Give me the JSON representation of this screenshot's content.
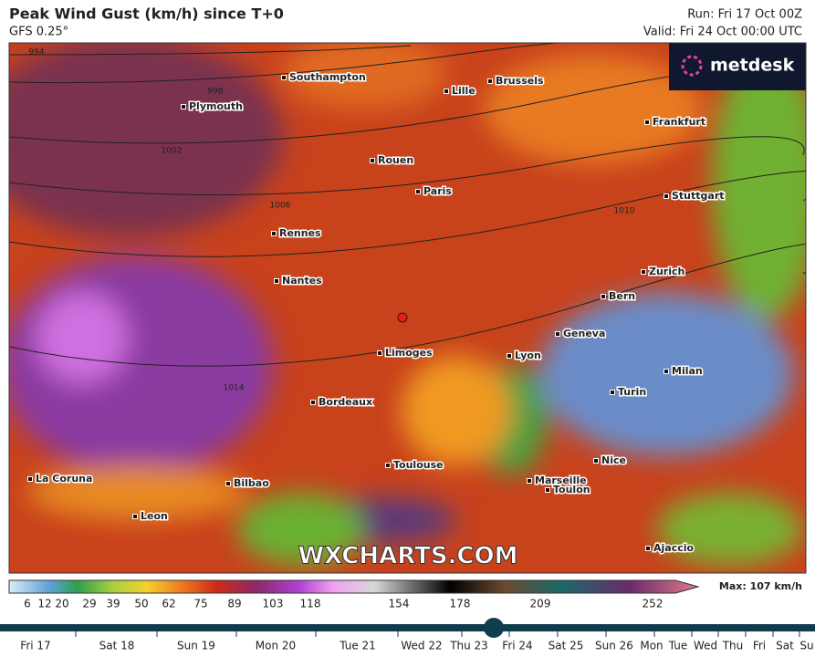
{
  "header": {
    "title": "Peak Wind Gust (km/h) since T+0",
    "model": "GFS 0.25°",
    "run": "Run: Fri 17 Oct 00Z",
    "valid": "Valid: Fri 24 Oct 00:00 UTC"
  },
  "logo": "metdesk",
  "watermark": "WXCHARTS.COM",
  "cities": [
    "Southampton",
    "Plymouth",
    "Lille",
    "Brussels",
    "Frankfurt",
    "Rouen",
    "Paris",
    "Stuttgart",
    "Rennes",
    "Nantes",
    "Zurich",
    "Bern",
    "Geneva",
    "Limoges",
    "Lyon",
    "Milan",
    "Turin",
    "Bordeaux",
    "Nice",
    "Toulouse",
    "Marseille",
    "Toulon",
    "La Coruna",
    "Bilbao",
    "Leon",
    "Ajaccio"
  ],
  "isobars": [
    "994",
    "998",
    "1002",
    "1006",
    "1010",
    "1014"
  ],
  "colorbar": {
    "ticks": [
      6,
      12,
      20,
      29,
      39,
      50,
      62,
      75,
      89,
      103,
      118,
      154,
      178,
      209,
      252
    ],
    "max": "Max: 107 km/h"
  },
  "timeline": [
    "Fri 17",
    "Sat 18",
    "Sun 19",
    "Mon 20",
    "Tue 21",
    "Wed 22",
    "Thu 23",
    "Fri 24",
    "Sat 25",
    "Sun 26",
    "Mon",
    "Tue",
    "Wed",
    "Thu",
    "Fri",
    "Sat",
    "Su"
  ]
}
